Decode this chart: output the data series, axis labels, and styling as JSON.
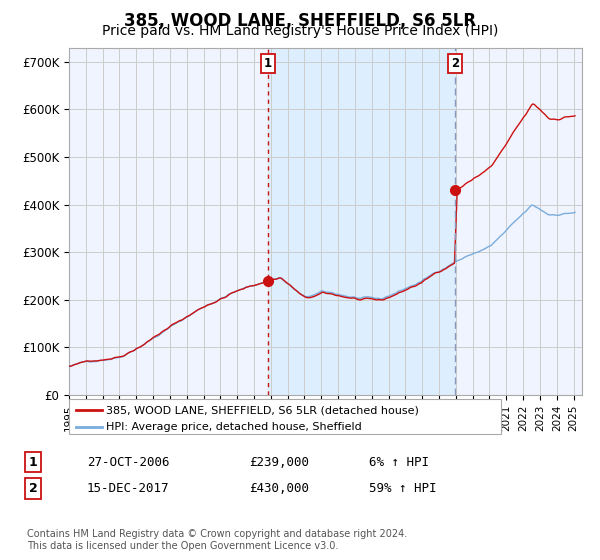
{
  "title": "385, WOOD LANE, SHEFFIELD, S6 5LR",
  "subtitle": "Price paid vs. HM Land Registry's House Price Index (HPI)",
  "title_fontsize": 12,
  "subtitle_fontsize": 10,
  "ylim": [
    0,
    730000
  ],
  "yticks": [
    0,
    100000,
    200000,
    300000,
    400000,
    500000,
    600000,
    700000
  ],
  "ytick_labels": [
    "£0",
    "£100K",
    "£200K",
    "£300K",
    "£400K",
    "£500K",
    "£600K",
    "£700K"
  ],
  "hpi_color": "#7aacdc",
  "price_color": "#cc1111",
  "vline1_color": "#cc1111",
  "vline2_color": "#8899bb",
  "shading_color": "#ddeeff",
  "shading_alpha": 0.5,
  "purchase1_date": 2006.82,
  "purchase1_price": 239000,
  "purchase2_date": 2017.96,
  "purchase2_price": 430000,
  "xlim_start": 1995.0,
  "xlim_end": 2025.5,
  "legend_house_label": "385, WOOD LANE, SHEFFIELD, S6 5LR (detached house)",
  "legend_hpi_label": "HPI: Average price, detached house, Sheffield",
  "table_rows": [
    [
      "1",
      "27-OCT-2006",
      "£239,000",
      "6% ↑ HPI"
    ],
    [
      "2",
      "15-DEC-2017",
      "£430,000",
      "59% ↑ HPI"
    ]
  ],
  "footnote": "Contains HM Land Registry data © Crown copyright and database right 2024.\nThis data is licensed under the Open Government Licence v3.0.",
  "background_color": "#ffffff",
  "plot_bg_color": "#f0f4ff",
  "grid_color": "#cccccc"
}
